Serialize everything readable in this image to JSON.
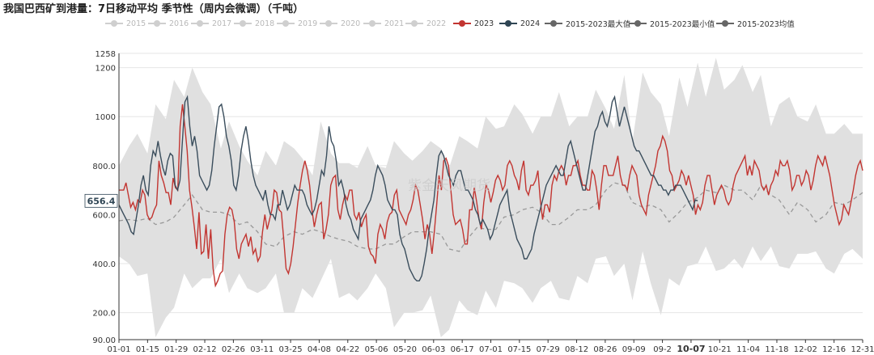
{
  "title": "我国巴西矿到港量：7日移动平均 季节性（周内会微调）（千吨）",
  "watermark": "紫金天风期货",
  "current_value_label": "656.4",
  "legend": [
    {
      "label": "2015",
      "color": "#cfcfcf",
      "active": false
    },
    {
      "label": "2016",
      "color": "#cfcfcf",
      "active": false
    },
    {
      "label": "2017",
      "color": "#cfcfcf",
      "active": false
    },
    {
      "label": "2018",
      "color": "#cfcfcf",
      "active": false
    },
    {
      "label": "2019",
      "color": "#cfcfcf",
      "active": false
    },
    {
      "label": "2020",
      "color": "#cfcfcf",
      "active": false
    },
    {
      "label": "2021",
      "color": "#cfcfcf",
      "active": false
    },
    {
      "label": "2022",
      "color": "#cfcfcf",
      "active": false
    },
    {
      "label": "2023",
      "color": "#c23531",
      "active": true
    },
    {
      "label": "2024",
      "color": "#2f4554",
      "active": true
    },
    {
      "label": "2015-2023最大值",
      "color": "#666666",
      "active": true
    },
    {
      "label": "2015-2023最小值",
      "color": "#666666",
      "active": true
    },
    {
      "label": "2015-2023均值",
      "color": "#666666",
      "active": true
    }
  ],
  "chart_data": {
    "type": "line",
    "title": "我国巴西矿到港量：7日移动平均 季节性（周内会微调）（千吨）",
    "ylim": [
      90,
      1258
    ],
    "y_ticks": [
      "90.00",
      "200.0",
      "400.0",
      "600.0",
      "800.0",
      "1000",
      "1200",
      "1258"
    ],
    "x_ticks": [
      "01-01",
      "01-15",
      "01-29",
      "02-12",
      "02-26",
      "03-11",
      "03-25",
      "04-08",
      "04-22",
      "05-06",
      "05-20",
      "06-03",
      "06-17",
      "07-01",
      "07-15",
      "07-29",
      "08-12",
      "08-26",
      "09-09",
      "09-2",
      "10-07",
      "10-21",
      "11-04",
      "11-18",
      "12-02",
      "12-16",
      "12-31"
    ],
    "highlight_x_tick": "10-07",
    "band_x": [
      0,
      5,
      9,
      14,
      18,
      23,
      27,
      32,
      36,
      41,
      45,
      50,
      54,
      59,
      63,
      68,
      72,
      77,
      81,
      86,
      90,
      95,
      99,
      104,
      108,
      113,
      117,
      122,
      126,
      131,
      135,
      140,
      144,
      149,
      153,
      158,
      162,
      167,
      171,
      176,
      180,
      185,
      189,
      194,
      198,
      203,
      207,
      212,
      216,
      221,
      225,
      230,
      234,
      239,
      243,
      248,
      252,
      257,
      261,
      266,
      270,
      275,
      279,
      284,
      288,
      293,
      297,
      302,
      306,
      311,
      315,
      320,
      324,
      329,
      333,
      338,
      342,
      347,
      351,
      356,
      360,
      365
    ],
    "series": [
      {
        "name": "2015-2023最大值",
        "values": [
          800,
          880,
          930,
          850,
          1050,
          990,
          1150,
          1080,
          1200,
          1100,
          1050,
          870,
          980,
          880,
          820,
          760,
          860,
          800,
          900,
          870,
          830,
          760,
          980,
          850,
          810,
          810,
          790,
          880,
          800,
          790,
          900,
          850,
          820,
          860,
          900,
          870,
          790,
          920,
          900,
          870,
          1000,
          950,
          960,
          1050,
          1010,
          930,
          1000,
          1000,
          1100,
          960,
          1000,
          1000,
          1110,
          1030,
          950,
          1170,
          900,
          1180,
          1100,
          1050,
          920,
          1160,
          1040,
          1220,
          1080,
          1240,
          1110,
          1150,
          1210,
          1100,
          1170,
          960,
          1050,
          1080,
          1000,
          980,
          1050,
          930,
          930,
          970,
          930,
          930
        ]
      },
      {
        "name": "2015-2023最小值",
        "values": [
          430,
          400,
          350,
          360,
          100,
          180,
          220,
          360,
          300,
          340,
          340,
          420,
          280,
          360,
          300,
          280,
          300,
          360,
          200,
          200,
          300,
          260,
          330,
          420,
          260,
          280,
          250,
          300,
          360,
          300,
          140,
          200,
          200,
          210,
          270,
          100,
          130,
          250,
          210,
          190,
          290,
          220,
          330,
          320,
          300,
          240,
          300,
          330,
          260,
          250,
          350,
          320,
          420,
          430,
          350,
          400,
          250,
          450,
          320,
          190,
          340,
          310,
          390,
          400,
          470,
          370,
          380,
          420,
          380,
          470,
          410,
          470,
          390,
          380,
          440,
          440,
          450,
          380,
          360,
          440,
          460,
          420
        ]
      },
      {
        "name": "2015-2023均值",
        "values": [
          575,
          580,
          575,
          585,
          560,
          570,
          590,
          640,
          680,
          620,
          610,
          610,
          600,
          560,
          570,
          530,
          480,
          470,
          510,
          530,
          520,
          540,
          530,
          510,
          500,
          490,
          470,
          460,
          460,
          480,
          480,
          510,
          530,
          530,
          530,
          520,
          460,
          450,
          500,
          550,
          540,
          540,
          590,
          600,
          620,
          630,
          610,
          560,
          560,
          590,
          620,
          620,
          640,
          700,
          730,
          720,
          650,
          630,
          640,
          620,
          570,
          610,
          650,
          670,
          700,
          690,
          720,
          700,
          700,
          660,
          720,
          680,
          660,
          600,
          650,
          620,
          570,
          600,
          650,
          640,
          660,
          690
        ]
      },
      {
        "name": "2023",
        "values": [
          700,
          700,
          700,
          730,
          680,
          630,
          650,
          620,
          660,
          650,
          700,
          680,
          600,
          580,
          590,
          620,
          640,
          820,
          760,
          730,
          690,
          690,
          640,
          750,
          710,
          700,
          960,
          1050,
          960,
          860,
          700,
          630,
          550,
          460,
          610,
          440,
          450,
          560,
          420,
          540,
          380,
          310,
          330,
          360,
          370,
          520,
          600,
          630,
          620,
          570,
          460,
          420,
          480,
          500,
          520,
          470,
          510,
          440,
          460,
          410,
          430,
          530,
          600,
          540,
          580,
          620,
          700,
          690,
          620,
          610,
          500,
          380,
          360,
          400,
          470,
          560,
          650,
          720,
          780,
          820,
          780,
          720,
          620,
          550,
          600,
          640,
          650,
          500,
          540,
          600,
          720,
          750,
          760,
          620,
          580,
          640,
          680,
          660,
          700,
          700,
          600,
          580,
          610,
          550,
          580,
          600,
          470,
          440,
          430,
          400,
          520,
          560,
          540,
          500,
          570,
          600,
          610,
          680,
          700,
          620,
          600,
          580,
          560,
          600,
          620,
          660,
          720,
          700,
          640,
          580,
          500,
          560,
          520,
          440,
          530,
          640,
          760,
          700,
          820,
          830,
          800,
          700,
          600,
          560,
          570,
          580,
          540,
          480,
          480,
          620,
          620,
          710,
          650,
          580,
          540,
          650,
          720,
          700,
          650,
          690,
          740,
          760,
          740,
          700,
          720,
          800,
          820,
          800,
          760,
          740,
          700,
          780,
          820,
          700,
          680,
          720,
          720,
          740,
          780,
          660,
          580,
          640,
          640,
          610,
          720,
          760,
          740,
          780,
          800,
          780,
          720,
          760,
          760,
          800,
          800,
          820,
          760,
          720,
          720,
          700,
          700,
          780,
          760,
          700,
          620,
          720,
          800,
          800,
          760,
          760,
          760,
          800,
          840,
          760,
          720,
          720,
          700,
          760,
          800,
          780,
          760,
          680,
          640,
          620,
          600,
          680,
          720,
          760,
          800,
          860,
          880,
          920,
          900,
          860,
          780,
          760,
          700,
          720,
          740,
          780,
          760,
          720,
          760,
          720,
          680,
          600,
          640,
          620,
          650,
          720,
          760,
          760,
          700,
          640,
          680,
          700,
          720,
          700,
          660,
          640,
          660,
          720,
          760,
          780,
          800,
          820,
          840,
          760,
          800,
          760,
          820,
          800,
          780,
          720,
          700,
          720,
          680,
          720,
          740,
          780,
          760,
          820,
          800,
          800,
          820,
          780,
          700,
          720,
          760,
          760,
          720,
          740,
          780,
          760,
          700,
          740,
          800,
          840,
          820,
          800,
          840,
          800,
          760,
          700,
          640,
          600,
          560,
          580,
          640,
          620,
          600,
          650,
          700,
          760,
          800,
          820,
          780
        ]
      },
      {
        "name": "2024",
        "values": [
          640,
          620,
          600,
          580,
          560,
          530,
          520,
          580,
          640,
          720,
          760,
          700,
          680,
          800,
          860,
          840,
          900,
          840,
          790,
          760,
          820,
          850,
          840,
          720,
          700,
          740,
          900,
          1060,
          1080,
          960,
          880,
          920,
          860,
          760,
          740,
          720,
          700,
          720,
          780,
          880,
          960,
          1040,
          1050,
          1000,
          920,
          880,
          820,
          720,
          700,
          760,
          860,
          920,
          960,
          900,
          820,
          760,
          720,
          700,
          680,
          660,
          700,
          640,
          600,
          600,
          580,
          640,
          640,
          700,
          660,
          620,
          640,
          680,
          720,
          700,
          700,
          700,
          680,
          640,
          620,
          600,
          620,
          660,
          720,
          780,
          760,
          840,
          960,
          900,
          880,
          820,
          720,
          740,
          700,
          640,
          600,
          580,
          540,
          520,
          500,
          580,
          600,
          620,
          640,
          660,
          700,
          760,
          800,
          780,
          760,
          720,
          660,
          640,
          620,
          620,
          600,
          520,
          480,
          460,
          420,
          380,
          360,
          340,
          330,
          330,
          350,
          400,
          460,
          540,
          600,
          660,
          760,
          840,
          860,
          840,
          800,
          760,
          740,
          720,
          760,
          780,
          780,
          740,
          700,
          700,
          680,
          660,
          620,
          600,
          560,
          580,
          560,
          540,
          500,
          520,
          560,
          600,
          640,
          660,
          680,
          700,
          620,
          580,
          540,
          500,
          480,
          460,
          420,
          420,
          440,
          460,
          520,
          560,
          600,
          640,
          680,
          720,
          740,
          760,
          780,
          800,
          780,
          760,
          760,
          820,
          880,
          900,
          860,
          820,
          780,
          740,
          700,
          700,
          760,
          820,
          880,
          940,
          960,
          1000,
          1020,
          980,
          960,
          1000,
          1060,
          1080,
          1020,
          960,
          1000,
          1040,
          1000,
          960,
          920,
          880,
          860,
          860,
          840,
          820,
          800,
          780,
          760,
          760,
          740,
          720,
          720,
          700,
          700,
          680,
          700,
          700,
          720,
          720,
          720,
          700,
          680,
          660,
          640,
          620,
          660,
          656.4
        ]
      }
    ],
    "series_2024_end_index": 284
  }
}
